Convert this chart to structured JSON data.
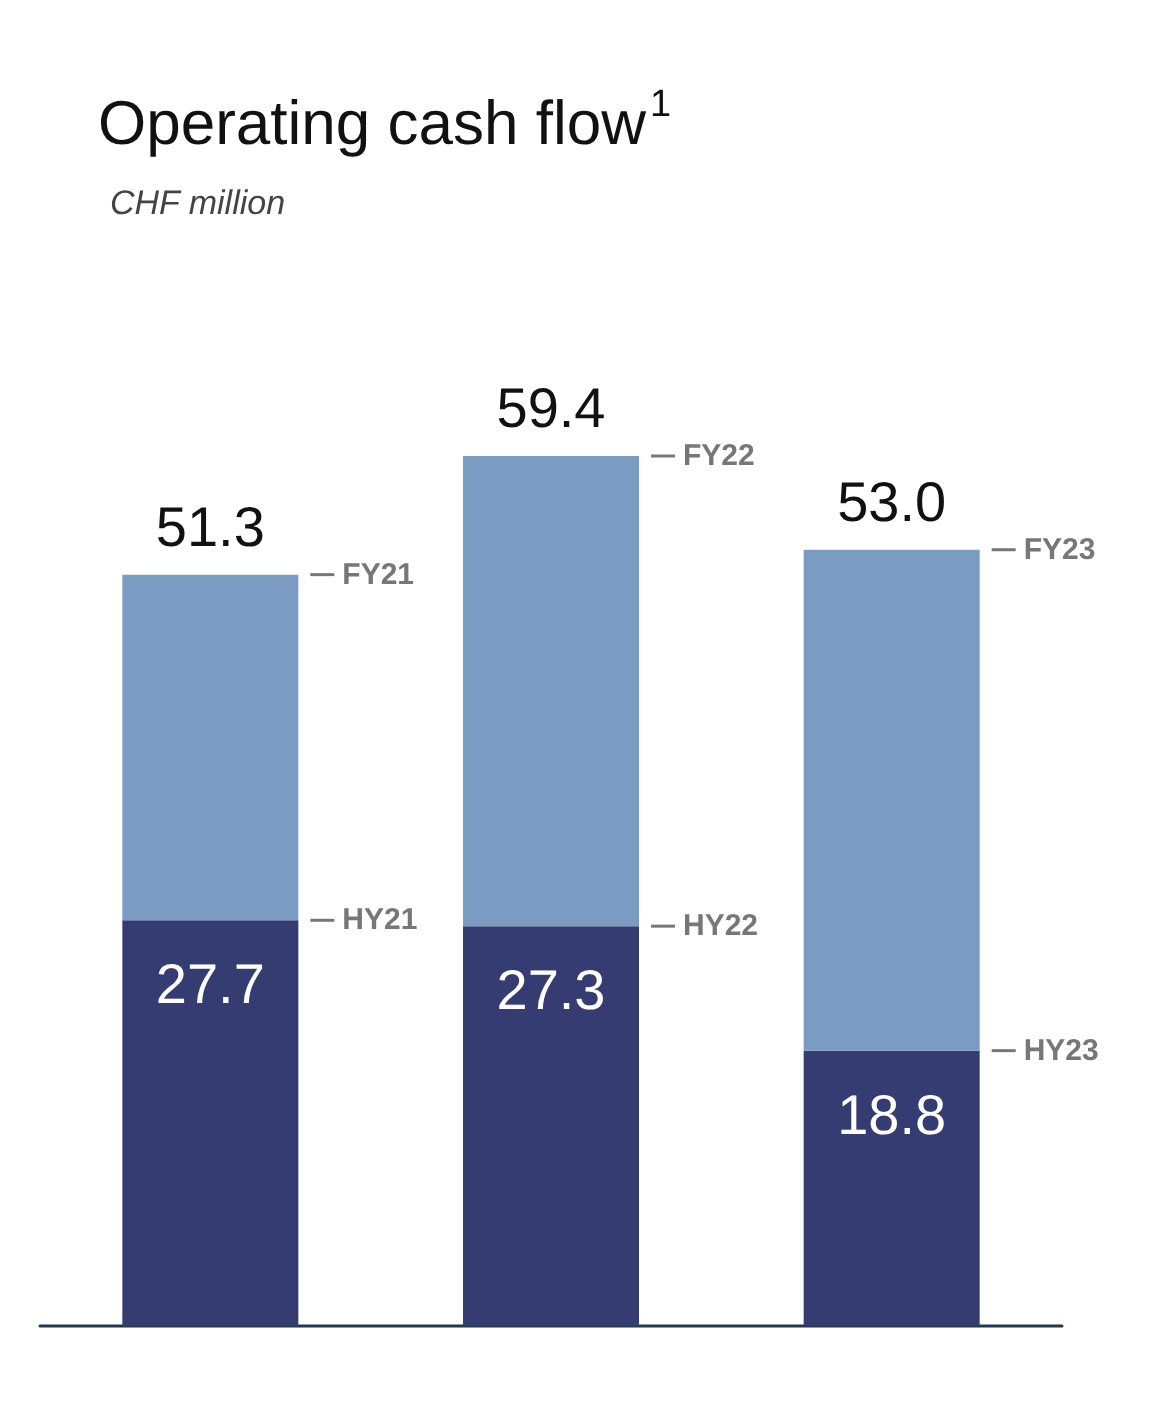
{
  "chart_data": {
    "type": "bar",
    "title": "Operating cash flow$^{1}$",
    "subtitle": "CHF million",
    "stacked": true,
    "categories": [
      null,
      null,
      null
    ],
    "series": [
      {
        "color": "#343c72",
        "values": [
          27.7,
          27.3,
          18.8
        ],
        "value_labels": [
          "27.7",
          "27.3",
          "18.8"
        ]
      },
      {
        "color": "#7b9cc2",
        "values": [
          23.6,
          32.1,
          34.2
        ]
      }
    ],
    "totals": [
      "51.3",
      "59.4",
      "53.0"
    ],
    "annotations": [
      "FY21",
      "HY21",
      "FY22",
      "HY22",
      "FY23",
      "HY23"
    ]
  }
}
